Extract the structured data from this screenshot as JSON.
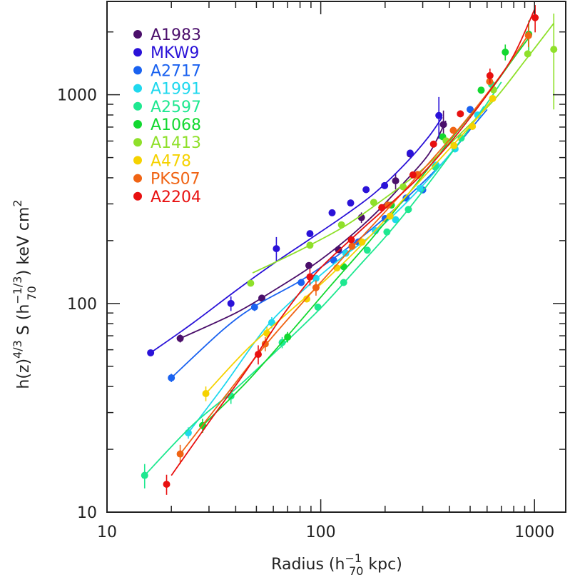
{
  "chart_data": {
    "type": "scatter",
    "x_scale": "log",
    "y_scale": "log",
    "xlim": [
      10,
      1400
    ],
    "ylim": [
      10,
      2800
    ],
    "x_ticks": [
      {
        "value": 10,
        "label": "10"
      },
      {
        "value": 100,
        "label": "100"
      },
      {
        "value": 1000,
        "label": "1000"
      }
    ],
    "y_ticks": [
      {
        "value": 10,
        "label": "10"
      },
      {
        "value": 100,
        "label": "100"
      },
      {
        "value": 1000,
        "label": "1000"
      }
    ],
    "xlabel": {
      "pre": "Radius (h",
      "sup": "−1",
      "sub": "70",
      "post": " kpc)"
    },
    "ylabel": {
      "p1": "h(z)",
      "s1": "4/3",
      "p2": " S (h",
      "s2": "−1/3",
      "b2": "70",
      "p3": ")  keV cm",
      "s3": "2",
      "p4": ")"
    },
    "legend_position": "top-left",
    "grid": false,
    "series": [
      {
        "name": "A1983",
        "color": "#4b0f6b",
        "points": [
          [
            22,
            68
          ],
          [
            53,
            106
          ],
          [
            88,
            152
          ],
          [
            121,
            181
          ],
          [
            155,
            258
          ],
          [
            224,
            387
          ],
          [
            262,
            520
          ],
          [
            375,
            720
          ]
        ],
        "errors": [
          [
            22,
            3
          ],
          [
            155,
            15
          ],
          [
            224,
            35
          ],
          [
            375,
            120
          ]
        ],
        "fit": [
          [
            22,
            68
          ],
          [
            40,
            90
          ],
          [
            60,
            115
          ],
          [
            90,
            150
          ],
          [
            130,
            200
          ],
          [
            180,
            270
          ],
          [
            240,
            370
          ],
          [
            320,
            520
          ],
          [
            385,
            750
          ]
        ]
      },
      {
        "name": "MKW9",
        "color": "#2a12d8",
        "points": [
          [
            16,
            58
          ],
          [
            38,
            100
          ],
          [
            62,
            183
          ],
          [
            89,
            216
          ],
          [
            113,
            272
          ],
          [
            138,
            303
          ],
          [
            163,
            351
          ],
          [
            199,
            367
          ],
          [
            262,
            525
          ],
          [
            357,
            795
          ]
        ],
        "errors": [
          [
            38,
            8
          ],
          [
            62,
            25
          ],
          [
            357,
            180
          ]
        ],
        "fit": [
          [
            16,
            58
          ],
          [
            25,
            80
          ],
          [
            40,
            115
          ],
          [
            60,
            155
          ],
          [
            90,
            205
          ],
          [
            130,
            265
          ],
          [
            180,
            340
          ],
          [
            250,
            470
          ],
          [
            320,
            630
          ],
          [
            370,
            780
          ]
        ]
      },
      {
        "name": "A2717",
        "color": "#1a62f0",
        "points": [
          [
            20,
            44
          ],
          [
            49,
            96
          ],
          [
            81,
            126
          ],
          [
            115,
            161
          ],
          [
            150,
            197
          ],
          [
            200,
            255
          ],
          [
            251,
            320
          ],
          [
            300,
            350
          ],
          [
            500,
            850
          ]
        ],
        "errors": [
          [
            20,
            2
          ],
          [
            49,
            4
          ]
        ],
        "fit": [
          [
            20,
            44
          ],
          [
            35,
            75
          ],
          [
            50,
            98
          ],
          [
            80,
            128
          ],
          [
            120,
            170
          ],
          [
            180,
            235
          ],
          [
            260,
            330
          ],
          [
            370,
            470
          ],
          [
            500,
            680
          ],
          [
            600,
            850
          ]
        ]
      },
      {
        "name": "A1991",
        "color": "#1fd8ee",
        "points": [
          [
            24,
            24
          ],
          [
            59,
            81
          ],
          [
            95,
            132
          ],
          [
            131,
            174
          ],
          [
            180,
            223
          ],
          [
            224,
            252
          ],
          [
            291,
            356
          ],
          [
            347,
            460
          ],
          [
            425,
            550
          ],
          [
            542,
            800
          ]
        ],
        "errors": [
          [
            24,
            1.5
          ],
          [
            59,
            5
          ]
        ],
        "fit": [
          [
            24,
            24
          ],
          [
            35,
            40
          ],
          [
            55,
            76
          ],
          [
            80,
            112
          ],
          [
            120,
            160
          ],
          [
            170,
            210
          ],
          [
            240,
            290
          ],
          [
            330,
            410
          ],
          [
            450,
            600
          ],
          [
            580,
            880
          ]
        ]
      },
      {
        "name": "A2597",
        "color": "#1ee890",
        "points": [
          [
            15,
            15
          ],
          [
            38,
            36
          ],
          [
            66,
            65
          ],
          [
            97,
            96
          ],
          [
            128,
            126
          ],
          [
            165,
            180
          ],
          [
            204,
            220
          ],
          [
            257,
            282
          ],
          [
            343,
            451
          ],
          [
            454,
            620
          ],
          [
            630,
            1120
          ]
        ],
        "errors": [
          [
            15,
            2
          ],
          [
            38,
            3
          ],
          [
            66,
            4
          ]
        ],
        "fit": [
          [
            15,
            15
          ],
          [
            25,
            26
          ],
          [
            40,
            39
          ],
          [
            65,
            62
          ],
          [
            100,
            95
          ],
          [
            150,
            150
          ],
          [
            210,
            220
          ],
          [
            290,
            330
          ],
          [
            400,
            510
          ],
          [
            550,
            800
          ],
          [
            700,
            1150
          ]
        ]
      },
      {
        "name": "A1068",
        "color": "#12d830",
        "points": [
          [
            28,
            26
          ],
          [
            70,
            69
          ],
          [
            128,
            150
          ],
          [
            214,
            296
          ],
          [
            372,
            629
          ],
          [
            563,
            1052
          ],
          [
            730,
            1600
          ],
          [
            940,
            1950
          ]
        ],
        "errors": [
          [
            28,
            2
          ],
          [
            70,
            4
          ],
          [
            730,
            140
          ],
          [
            940,
            320
          ]
        ],
        "fit": [
          [
            28,
            26
          ],
          [
            45,
            42
          ],
          [
            70,
            70
          ],
          [
            110,
            120
          ],
          [
            170,
            200
          ],
          [
            260,
            340
          ],
          [
            400,
            600
          ],
          [
            600,
            1000
          ],
          [
            800,
            1500
          ],
          [
            950,
            1900
          ]
        ]
      },
      {
        "name": "A1413",
        "color": "#8fe02a",
        "points": [
          [
            47,
            125
          ],
          [
            89,
            190
          ],
          [
            125,
            238
          ],
          [
            177,
            305
          ],
          [
            243,
            362
          ],
          [
            386,
            601
          ],
          [
            643,
            1056
          ],
          [
            930,
            1570
          ],
          [
            1231,
            1650
          ]
        ],
        "errors": [
          [
            1231,
            800
          ]
        ],
        "fit": [
          [
            48,
            140
          ],
          [
            80,
            180
          ],
          [
            130,
            235
          ],
          [
            200,
            320
          ],
          [
            300,
            440
          ],
          [
            450,
            650
          ],
          [
            650,
            950
          ],
          [
            900,
            1450
          ],
          [
            1231,
            2200
          ]
        ]
      },
      {
        "name": "A478",
        "color": "#f5d200",
        "points": [
          [
            29,
            37
          ],
          [
            56,
            72
          ],
          [
            86,
            105
          ],
          [
            119,
            148
          ],
          [
            156,
            197
          ],
          [
            211,
            262
          ],
          [
            286,
            410
          ],
          [
            420,
            570
          ],
          [
            512,
            705
          ],
          [
            637,
            960
          ]
        ],
        "errors": [
          [
            29,
            3
          ],
          [
            56,
            5
          ]
        ],
        "fit": [
          [
            29,
            37
          ],
          [
            45,
            60
          ],
          [
            70,
            90
          ],
          [
            110,
            135
          ],
          [
            170,
            210
          ],
          [
            260,
            340
          ],
          [
            380,
            520
          ],
          [
            520,
            740
          ],
          [
            650,
            980
          ]
        ]
      },
      {
        "name": "PKS07",
        "color": "#f06414",
        "points": [
          [
            22,
            19
          ],
          [
            55,
            64
          ],
          [
            95,
            119
          ],
          [
            140,
            188
          ],
          [
            206,
            296
          ],
          [
            284,
            415
          ],
          [
            417,
            675
          ],
          [
            617,
            1157
          ],
          [
            937,
            1920
          ]
        ],
        "errors": [
          [
            22,
            2
          ],
          [
            55,
            5
          ],
          [
            95,
            10
          ],
          [
            937,
            230
          ]
        ],
        "fit": [
          [
            22,
            19
          ],
          [
            35,
            35
          ],
          [
            55,
            63
          ],
          [
            90,
            112
          ],
          [
            140,
            185
          ],
          [
            210,
            290
          ],
          [
            320,
            470
          ],
          [
            480,
            760
          ],
          [
            700,
            1250
          ],
          [
            940,
            1950
          ]
        ]
      },
      {
        "name": "A2204",
        "color": "#e81010",
        "points": [
          [
            19,
            13.6
          ],
          [
            51,
            57
          ],
          [
            89,
            134
          ],
          [
            139,
            202
          ],
          [
            193,
            288
          ],
          [
            270,
            413
          ],
          [
            337,
            580
          ],
          [
            450,
            810
          ],
          [
            619,
            1235
          ],
          [
            1007,
            2340
          ]
        ],
        "errors": [
          [
            19,
            1.5
          ],
          [
            51,
            6
          ],
          [
            89,
            12
          ],
          [
            619,
            100
          ],
          [
            1007,
            350
          ]
        ],
        "fit": [
          [
            20,
            15
          ],
          [
            30,
            27
          ],
          [
            45,
            48
          ],
          [
            65,
            85
          ],
          [
            95,
            140
          ],
          [
            140,
            205
          ],
          [
            200,
            285
          ],
          [
            290,
            405
          ],
          [
            420,
            620
          ],
          [
            600,
            1000
          ],
          [
            800,
            1550
          ],
          [
            1007,
            2600
          ]
        ]
      }
    ]
  }
}
